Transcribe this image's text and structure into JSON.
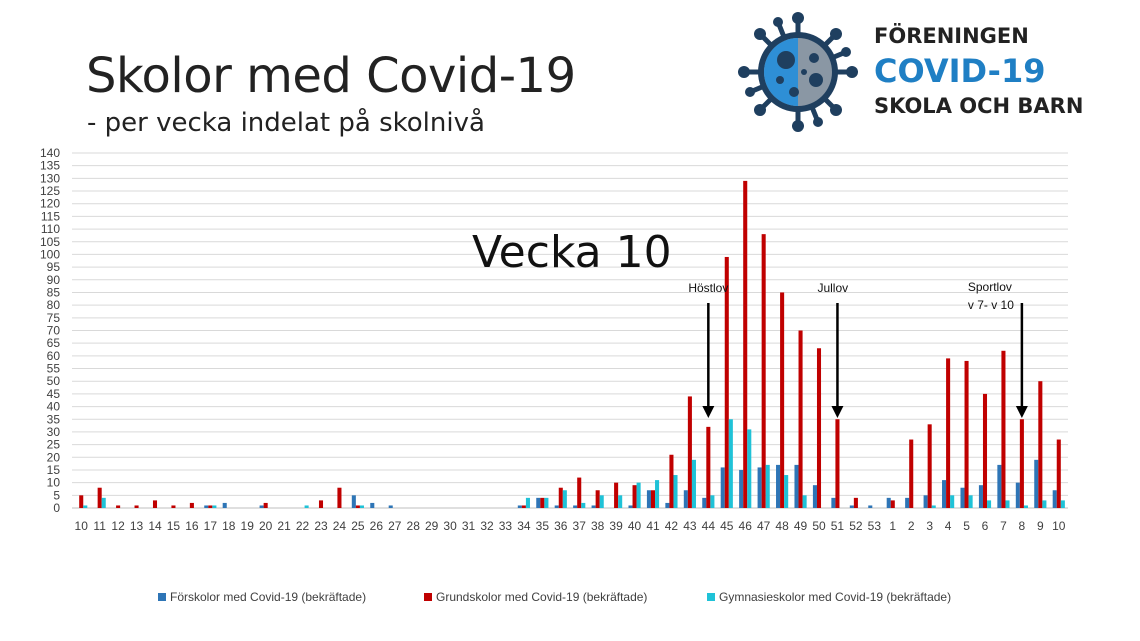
{
  "title": "Skolor med Covid-19",
  "subtitle": "- per vecka indelat på skolnivå",
  "logo": {
    "line1": "FÖRENINGEN",
    "line2": "COVID-19",
    "line3": "SKOLA OCH BARN",
    "icon": "virus-icon"
  },
  "chart_data": {
    "type": "bar",
    "ylim": [
      0,
      140
    ],
    "ytick_step": 5,
    "grid": true,
    "legend_position": "bottom",
    "categories": [
      "10",
      "11",
      "12",
      "13",
      "14",
      "15",
      "16",
      "17",
      "18",
      "19",
      "20",
      "21",
      "22",
      "23",
      "24",
      "25",
      "26",
      "27",
      "28",
      "29",
      "30",
      "31",
      "32",
      "33",
      "34",
      "35",
      "36",
      "37",
      "38",
      "39",
      "40",
      "41",
      "42",
      "43",
      "44",
      "45",
      "46",
      "47",
      "48",
      "49",
      "50",
      "51",
      "52",
      "53",
      "1",
      "2",
      "3",
      "4",
      "5",
      "6",
      "7",
      "8",
      "9",
      "10"
    ],
    "series": [
      {
        "name": "Förskolor med Covid-19 (bekräftade)",
        "color": "#2e75b6",
        "values": [
          0,
          0,
          0,
          0,
          0,
          0,
          0,
          1,
          2,
          0,
          1,
          0,
          0,
          0,
          0,
          5,
          2,
          1,
          0,
          0,
          0,
          0,
          0,
          0,
          1,
          4,
          1,
          1,
          1,
          0,
          1,
          7,
          2,
          7,
          4,
          16,
          15,
          16,
          17,
          17,
          9,
          4,
          1,
          1,
          4,
          4,
          5,
          11,
          8,
          9,
          17,
          10,
          19,
          7
        ]
      },
      {
        "name": "Grundskolor med Covid-19 (bekräftade)",
        "color": "#c00000",
        "values": [
          5,
          8,
          1,
          1,
          3,
          1,
          2,
          1,
          0,
          0,
          2,
          0,
          0,
          3,
          8,
          1,
          0,
          0,
          0,
          0,
          0,
          0,
          0,
          0,
          1,
          4,
          8,
          12,
          7,
          10,
          9,
          7,
          21,
          44,
          32,
          99,
          129,
          108,
          85,
          70,
          63,
          35,
          4,
          0,
          3,
          27,
          33,
          59,
          58,
          45,
          62,
          35,
          50,
          27
        ]
      },
      {
        "name": "Gymnasieskolor med Covid-19 (bekräftade)",
        "color": "#1fc2d7",
        "values": [
          1,
          4,
          0,
          0,
          0,
          0,
          0,
          1,
          0,
          0,
          0,
          0,
          1,
          0,
          0,
          1,
          0,
          0,
          0,
          0,
          0,
          0,
          0,
          0,
          4,
          4,
          7,
          2,
          5,
          5,
          10,
          11,
          13,
          19,
          5,
          35,
          31,
          17,
          13,
          5,
          0,
          0,
          0,
          0,
          0,
          0,
          1,
          5,
          5,
          3,
          3,
          1,
          3,
          3
        ]
      }
    ],
    "annotations": [
      {
        "text": "Vecka 10",
        "kind": "large-label"
      },
      {
        "text": "Höstlov",
        "target_index": 34
      },
      {
        "text": "Jullov",
        "target_index": 41
      },
      {
        "text": "Sportlov",
        "text2": "v 7- v 10",
        "target_index": 51
      }
    ]
  }
}
